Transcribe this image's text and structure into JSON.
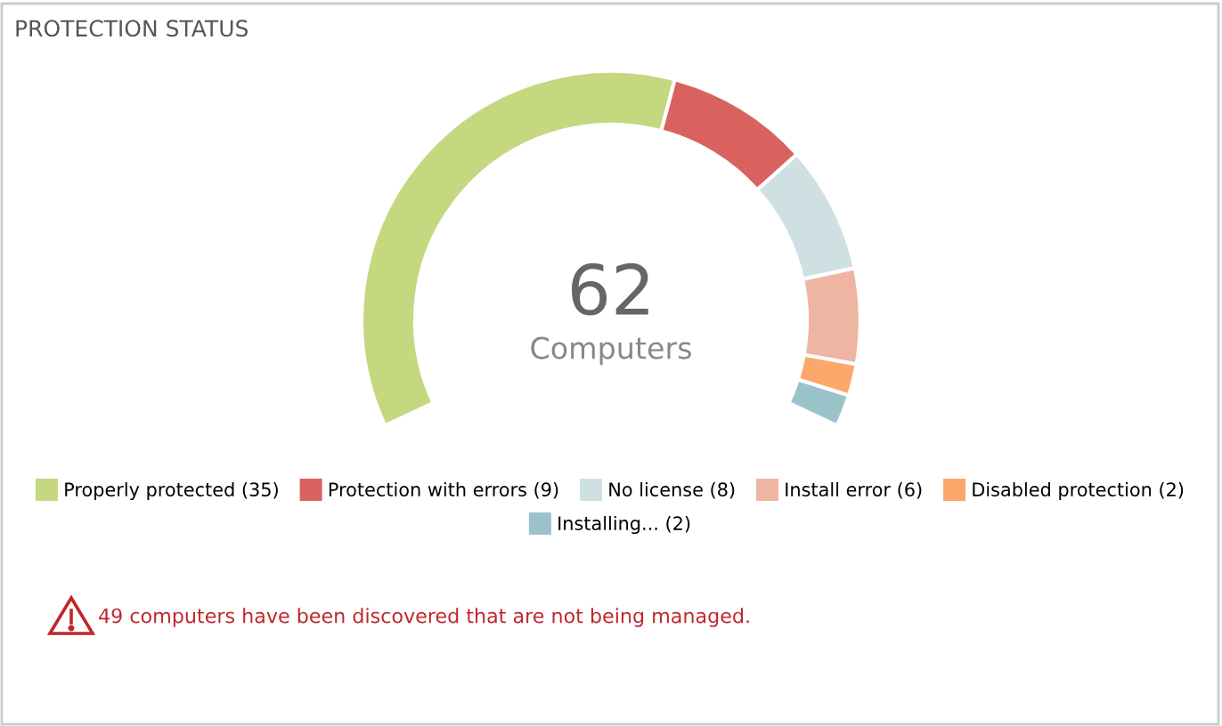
{
  "chart_data": {
    "type": "donut",
    "title": "PROTECTION STATUS",
    "categories": [
      "Properly protected (35)",
      "Protection with errors (9)",
      "No license (8)",
      "Install error (6)",
      "Disabled protection (2)",
      "Installing... (2)"
    ],
    "values": [
      35,
      9,
      8,
      6,
      2,
      2
    ],
    "colors": [
      "#c5d880",
      "#d9625f",
      "#cfe0e3",
      "#eeb5a3",
      "#fba86a",
      "#9ac2c9"
    ],
    "legend": "bottom",
    "annotations": [
      "62",
      "Computers",
      "49 computers have been discovered that are not being managed."
    ]
  }
}
